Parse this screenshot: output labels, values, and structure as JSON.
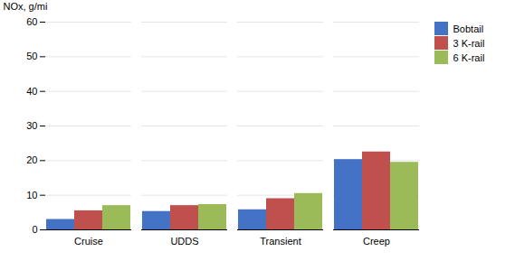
{
  "chart_data": {
    "type": "bar",
    "ylabel": "NOx, g/mi",
    "categories": [
      "Cruise",
      "UDDS",
      "Transient",
      "Creep"
    ],
    "series": [
      {
        "name": "Bobtail",
        "color": "#4472C4",
        "values": [
          3.0,
          5.3,
          5.8,
          20.3
        ]
      },
      {
        "name": "3 K-rail",
        "color": "#C0504D",
        "values": [
          5.5,
          7.0,
          9.0,
          22.5
        ]
      },
      {
        "name": "6 K-rail",
        "color": "#9BBB59",
        "values": [
          7.0,
          7.3,
          10.5,
          19.5
        ]
      }
    ],
    "ylim": [
      0,
      60
    ],
    "yticks": [
      0,
      10,
      20,
      30,
      40,
      50,
      60
    ],
    "grid": true,
    "legend": "right"
  }
}
